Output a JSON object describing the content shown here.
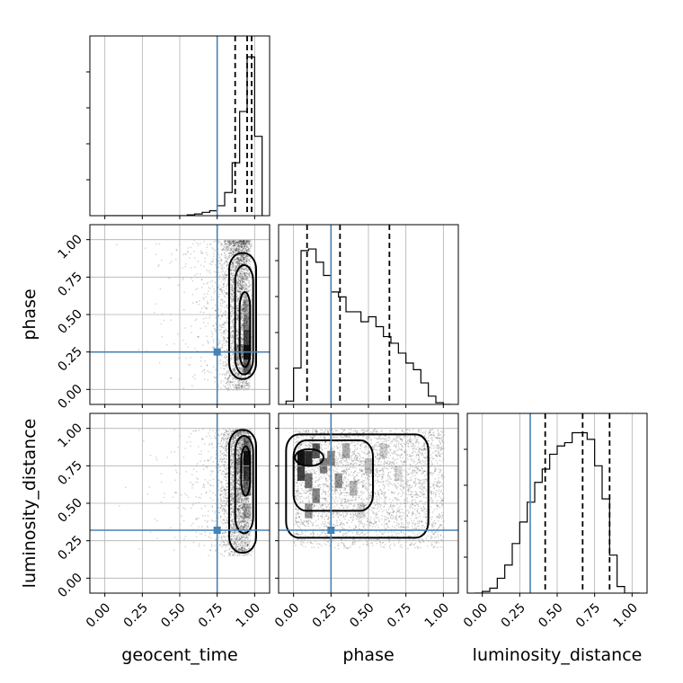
{
  "chart_data": {
    "type": "corner",
    "parameters": [
      "geocent_time",
      "phase",
      "luminosity_distance"
    ],
    "axis_range": [
      -0.1,
      1.1
    ],
    "ticks": [
      0.0,
      0.25,
      0.5,
      0.75,
      1.0
    ],
    "tick_labels": [
      "0.00",
      "0.25",
      "0.50",
      "0.75",
      "1.00"
    ],
    "axis_labels": {
      "geocent_time": "geocent_time",
      "phase": "phase",
      "luminosity_distance": "luminosity_distance"
    },
    "truths": {
      "geocent_time": 0.75,
      "phase": 0.25,
      "luminosity_distance": 0.32
    },
    "truth_color": "#4682b4",
    "quantiles": {
      "geocent_time": [
        0.87,
        0.95,
        0.98
      ],
      "phase": [
        0.09,
        0.31,
        0.64
      ],
      "luminosity_distance": [
        0.42,
        0.67,
        0.85
      ]
    },
    "histograms": [
      {
        "parameter": "geocent_time",
        "bin_edges": [
          0.0,
          0.05,
          0.1,
          0.15,
          0.2,
          0.25,
          0.3,
          0.35,
          0.4,
          0.45,
          0.5,
          0.55,
          0.6,
          0.65,
          0.7,
          0.75,
          0.8,
          0.85,
          0.9,
          0.95,
          1.0,
          1.05
        ],
        "counts": [
          0,
          0,
          0,
          0,
          0,
          0,
          0,
          0,
          0,
          0,
          0,
          0.5,
          1,
          2,
          3,
          6,
          14,
          32,
          63,
          96,
          48
        ],
        "ymax": 100
      },
      {
        "parameter": "phase",
        "bin_edges": [
          -0.05,
          0.0,
          0.05,
          0.1,
          0.15,
          0.2,
          0.25,
          0.3,
          0.35,
          0.4,
          0.45,
          0.5,
          0.55,
          0.6,
          0.65,
          0.7,
          0.75,
          0.8,
          0.85,
          0.9,
          0.95,
          1.0,
          1.05
        ],
        "counts": [
          2,
          22,
          93,
          94,
          86,
          78,
          68,
          65,
          56,
          56,
          50,
          53,
          47,
          41,
          37,
          31,
          25,
          21,
          13,
          5,
          1,
          0
        ],
        "ymax": 100
      },
      {
        "parameter": "luminosity_distance",
        "bin_edges": [
          -0.05,
          0.0,
          0.05,
          0.1,
          0.15,
          0.2,
          0.25,
          0.3,
          0.35,
          0.4,
          0.45,
          0.5,
          0.55,
          0.6,
          0.65,
          0.7,
          0.75,
          0.8,
          0.85,
          0.9,
          0.95,
          1.0,
          1.05
        ],
        "counts": [
          0,
          1,
          3,
          9,
          17,
          30,
          43,
          55,
          67,
          75,
          84,
          89,
          91,
          97,
          97,
          93,
          77,
          57,
          23,
          4,
          0,
          0
        ],
        "ymax": 100
      }
    ],
    "panels_2d": [
      {
        "x": "geocent_time",
        "y": "phase",
        "points": {
          "count": 3000,
          "x_center": 0.92,
          "x_scale": 0.08,
          "y_range": [
            0.0,
            1.0
          ]
        },
        "contour_levels": [
          {
            "x_range": [
              0.83,
              1.01
            ],
            "y_range": [
              0.07,
              0.91
            ]
          },
          {
            "x_range": [
              0.87,
              0.99
            ],
            "y_range": [
              0.1,
              0.83
            ]
          },
          {
            "x_range": [
              0.9,
              0.97
            ],
            "y_range": [
              0.15,
              0.65
            ]
          }
        ],
        "density_cells": [
          {
            "x": 0.95,
            "y": 0.25,
            "v": 1.0
          },
          {
            "x": 0.95,
            "y": 0.35,
            "v": 0.75
          },
          {
            "x": 0.95,
            "y": 0.15,
            "v": 0.6
          },
          {
            "x": 0.95,
            "y": 0.45,
            "v": 0.5
          },
          {
            "x": 0.9,
            "y": 0.25,
            "v": 0.35
          },
          {
            "x": 0.95,
            "y": 0.55,
            "v": 0.35
          }
        ]
      },
      {
        "x": "geocent_time",
        "y": "luminosity_distance",
        "points": {
          "count": 3000,
          "x_center": 0.92,
          "x_scale": 0.08,
          "y_range": [
            0.15,
            1.0
          ]
        },
        "contour_levels": [
          {
            "x_range": [
              0.83,
              1.01
            ],
            "y_range": [
              0.17,
              0.99
            ]
          },
          {
            "x_range": [
              0.87,
              0.99
            ],
            "y_range": [
              0.3,
              0.95
            ]
          },
          {
            "x_range": [
              0.91,
              0.97
            ],
            "y_range": [
              0.55,
              0.88
            ]
          }
        ],
        "density_cells": [
          {
            "x": 0.95,
            "y": 0.8,
            "v": 1.0
          },
          {
            "x": 0.95,
            "y": 0.7,
            "v": 0.8
          },
          {
            "x": 0.95,
            "y": 0.6,
            "v": 0.55
          },
          {
            "x": 0.95,
            "y": 0.9,
            "v": 0.5
          },
          {
            "x": 0.9,
            "y": 0.75,
            "v": 0.3
          },
          {
            "x": 0.95,
            "y": 0.45,
            "v": 0.3
          }
        ]
      },
      {
        "x": "phase",
        "y": "luminosity_distance",
        "points": {
          "count": 3500,
          "x_range": [
            0.0,
            1.0
          ],
          "y_range": [
            0.2,
            1.0
          ]
        },
        "contour_levels": [
          {
            "x_range": [
              -0.05,
              0.9
            ],
            "y_range": [
              0.27,
              0.96
            ]
          },
          {
            "x_range": [
              0.0,
              0.53
            ],
            "y_range": [
              0.45,
              0.92
            ]
          },
          {
            "x_range": [
              0.01,
              0.2
            ],
            "y_range": [
              0.75,
              0.86
            ]
          }
        ],
        "density_cells": [
          {
            "x": 0.05,
            "y": 0.8,
            "v": 1.0
          },
          {
            "x": 0.1,
            "y": 0.8,
            "v": 0.9
          },
          {
            "x": 0.05,
            "y": 0.7,
            "v": 0.8
          },
          {
            "x": 0.15,
            "y": 0.85,
            "v": 0.7
          },
          {
            "x": 0.1,
            "y": 0.65,
            "v": 0.6
          },
          {
            "x": 0.2,
            "y": 0.75,
            "v": 0.55
          },
          {
            "x": 0.25,
            "y": 0.8,
            "v": 0.5
          },
          {
            "x": 0.15,
            "y": 0.55,
            "v": 0.5
          },
          {
            "x": 0.3,
            "y": 0.65,
            "v": 0.45
          },
          {
            "x": 0.1,
            "y": 0.45,
            "v": 0.45
          },
          {
            "x": 0.35,
            "y": 0.85,
            "v": 0.35
          },
          {
            "x": 0.4,
            "y": 0.6,
            "v": 0.3
          },
          {
            "x": 0.5,
            "y": 0.75,
            "v": 0.25
          },
          {
            "x": 0.6,
            "y": 0.85,
            "v": 0.2
          },
          {
            "x": 0.7,
            "y": 0.7,
            "v": 0.15
          },
          {
            "x": 0.45,
            "y": 0.45,
            "v": 0.15
          }
        ]
      }
    ]
  }
}
